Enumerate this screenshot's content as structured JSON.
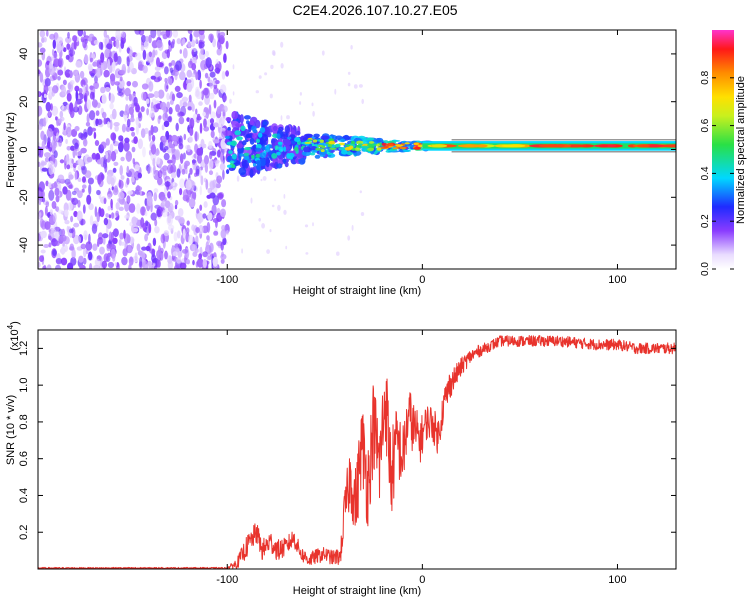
{
  "title": "C2E4.2026.107.10.27.E05",
  "colors": {
    "axis": "#000000",
    "snr_line": "#e8332c",
    "background": "#ffffff"
  },
  "chart_data": [
    {
      "type": "heatmap",
      "name": "spectrogram",
      "xlabel": "Height of straight line (km)",
      "ylabel": "Frequency (Hz)",
      "xlim": [
        -197,
        130
      ],
      "ylim": [
        -50,
        50
      ],
      "xticks": [
        -100,
        0,
        100
      ],
      "xtick_labels": [
        "-100",
        "0",
        "100"
      ],
      "yticks": [
        -40,
        -20,
        0,
        20,
        40
      ],
      "ytick_labels": [
        "-40",
        "-20",
        "0",
        "20",
        "40"
      ],
      "colorbar": {
        "label": "Normalized spectral amplitude",
        "range": [
          0,
          1
        ],
        "ticks": [
          0.0,
          0.2,
          0.4,
          0.6,
          0.8
        ],
        "tick_labels": [
          "0.0",
          "0.2",
          "0.4",
          "0.6",
          "0.8"
        ],
        "colormap": "rainbow (white-violet-blue-cyan-green-yellow-orange-red-magenta)"
      },
      "regions": [
        {
          "x_range": [
            -197,
            -100
          ],
          "freq_range": [
            -50,
            50
          ],
          "amplitude": 0.1
        },
        {
          "x_range": [
            -100,
            -60
          ],
          "freq_range": [
            -12,
            18
          ],
          "amplitude": 0.4
        },
        {
          "x_range": [
            -60,
            0
          ],
          "freq_range": [
            -4,
            4
          ],
          "amplitude": 0.6
        },
        {
          "x_range": [
            0,
            130
          ],
          "freq_range": [
            -1,
            3
          ],
          "amplitude": 0.85
        }
      ]
    },
    {
      "type": "line",
      "name": "snr",
      "xlabel": "Height of straight line (km)",
      "ylabel": "SNR (10 * v/v)",
      "y_multiplier": "(x10",
      "y_multiplier_exp": "4",
      "y_multiplier_close": ")",
      "xlim": [
        -197,
        130
      ],
      "ylim": [
        0,
        1.3
      ],
      "xticks": [
        -100,
        0,
        100
      ],
      "xtick_labels": [
        "-100",
        "0",
        "100"
      ],
      "yticks": [
        0.2,
        0.4,
        0.6,
        0.8,
        1.0,
        1.2
      ],
      "ytick_labels": [
        "0.2",
        "0.4",
        "0.6",
        "0.8",
        "1.0",
        "1.2"
      ],
      "series": [
        {
          "name": "SNR",
          "x": [
            -197,
            -100,
            -95,
            -90,
            -85,
            -82,
            -78,
            -74,
            -70,
            -66,
            -62,
            -58,
            -54,
            -50,
            -46,
            -42,
            -40,
            -37,
            -34,
            -31,
            -28,
            -25,
            -22,
            -19,
            -16,
            -13,
            -10,
            -7,
            -4,
            -1,
            2,
            5,
            8,
            11,
            14,
            17,
            20,
            24,
            28,
            32,
            36,
            40,
            50,
            60,
            70,
            80,
            90,
            100,
            110,
            120,
            130
          ],
          "y": [
            0.005,
            0.005,
            0.03,
            0.12,
            0.2,
            0.1,
            0.15,
            0.1,
            0.12,
            0.17,
            0.08,
            0.05,
            0.07,
            0.08,
            0.06,
            0.07,
            0.3,
            0.5,
            0.35,
            0.7,
            0.45,
            0.8,
            0.55,
            0.95,
            0.5,
            0.7,
            0.6,
            0.85,
            0.75,
            0.7,
            0.8,
            0.8,
            0.72,
            0.9,
            1.0,
            1.05,
            1.1,
            1.15,
            1.18,
            1.2,
            1.22,
            1.24,
            1.24,
            1.24,
            1.24,
            1.23,
            1.22,
            1.22,
            1.2,
            1.2,
            1.2
          ],
          "noise": [
            0.004,
            0.004,
            0.03,
            0.06,
            0.06,
            0.06,
            0.06,
            0.06,
            0.05,
            0.05,
            0.04,
            0.04,
            0.04,
            0.04,
            0.04,
            0.05,
            0.12,
            0.18,
            0.2,
            0.22,
            0.25,
            0.25,
            0.25,
            0.25,
            0.25,
            0.2,
            0.18,
            0.15,
            0.15,
            0.12,
            0.1,
            0.1,
            0.1,
            0.09,
            0.08,
            0.06,
            0.05,
            0.04,
            0.035,
            0.03,
            0.03,
            0.03,
            0.03,
            0.03,
            0.03,
            0.03,
            0.03,
            0.03,
            0.03,
            0.03,
            0.03
          ]
        }
      ]
    }
  ]
}
